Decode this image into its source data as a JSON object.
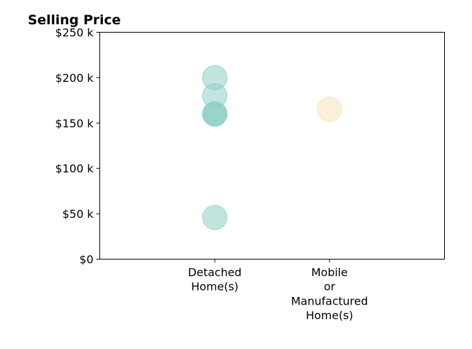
{
  "chart_data": {
    "type": "scatter",
    "title": "Selling Price",
    "xlabel": "",
    "ylabel": "",
    "categories": [
      [
        "Detached",
        "Home(s)"
      ],
      [
        "Mobile",
        "or",
        "Manufactured",
        "Home(s)"
      ]
    ],
    "ylim": [
      0,
      250000
    ],
    "y_ticks": [
      0,
      50000,
      100000,
      150000,
      200000,
      250000
    ],
    "y_tick_labels": [
      "$0",
      "$50 k",
      "$100 k",
      "$150 k",
      "$200 k",
      "$250 k"
    ],
    "grid": false,
    "legend": "none",
    "points": [
      {
        "category": 0,
        "value": 200000,
        "color": "#8ecfc5"
      },
      {
        "category": 0,
        "value": 180000,
        "color": "#8ecfc5"
      },
      {
        "category": 0,
        "value": 160000,
        "color": "#8ecfc5"
      },
      {
        "category": 0,
        "value": 160000,
        "color": "#8ecfc5"
      },
      {
        "category": 0,
        "value": 160000,
        "color": "#8ecfc5"
      },
      {
        "category": 0,
        "value": 46000,
        "color": "#8ecfc5"
      },
      {
        "category": 1,
        "value": 165000,
        "color": "#f5e2b8"
      }
    ]
  }
}
